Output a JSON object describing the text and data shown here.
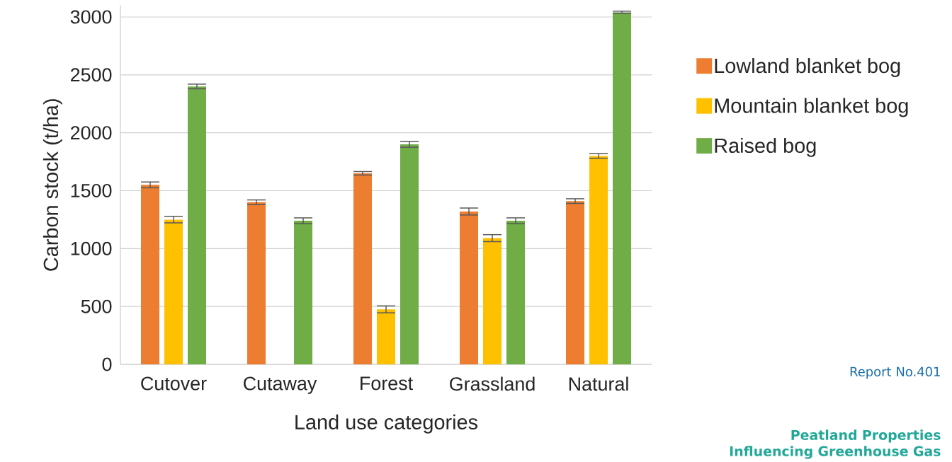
{
  "chart_data": {
    "type": "bar",
    "xlabel": "Land use categories",
    "ylabel": "Carbon stock (t/ha)",
    "categories": [
      "Cutover",
      "Cutaway",
      "Forest",
      "Grassland",
      "Natural"
    ],
    "series": [
      {
        "name": "Lowland blanket bog",
        "color": "#ed7d31",
        "values": [
          1550,
          1400,
          1650,
          1320,
          1410
        ],
        "errors": [
          25,
          20,
          15,
          30,
          20
        ]
      },
      {
        "name": "Mountain blanket bog",
        "color": "#ffc000",
        "values": [
          1250,
          null,
          475,
          1090,
          1800
        ],
        "errors": [
          28,
          null,
          30,
          30,
          20
        ]
      },
      {
        "name": "Raised bog",
        "color": "#70ad47",
        "values": [
          2400,
          1240,
          1900,
          1240,
          3040
        ],
        "errors": [
          20,
          25,
          25,
          25,
          10
        ]
      }
    ],
    "ylim": [
      0,
      3100
    ],
    "yticks": [
      0,
      500,
      1000,
      1500,
      2000,
      2500,
      3000
    ],
    "grid": "y",
    "legend": "right",
    "annotations": [
      "Report No.401",
      "Peatland Properties Influencing Greenhouse Gas"
    ]
  }
}
